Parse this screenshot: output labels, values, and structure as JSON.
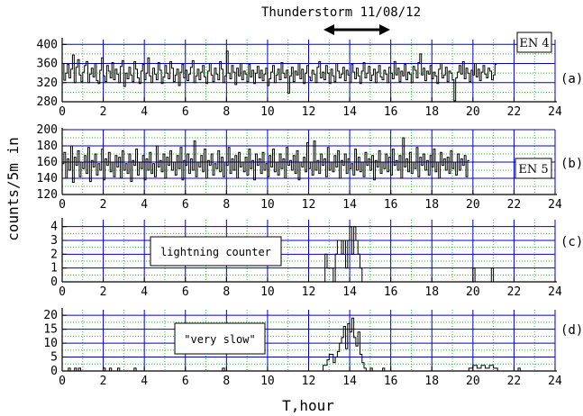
{
  "figure": {
    "title": "Thunderstorm 11/08/12",
    "ylabel": "counts/5m in",
    "xlabel": "T,hour",
    "colors": {
      "major_grid": "#0000cc",
      "minor_grid": "#2fbf2f",
      "series": "#000000",
      "arrow": "#000000"
    }
  },
  "chart_data": [
    {
      "type": "line",
      "panel_letter": "(a)",
      "box_label": "EN 4",
      "x_ticks": [
        "0",
        "2",
        "4",
        "6",
        "8",
        "10",
        "12",
        "14",
        "16",
        "18",
        "20",
        "22",
        "24"
      ],
      "y_ticks": [
        "280",
        "320",
        "360",
        "400"
      ],
      "xlim": [
        0,
        24
      ],
      "ylim": [
        280,
        410
      ],
      "grid": true,
      "series": [
        {
          "step_hours": 0.0833,
          "values": [
            360,
            325,
            340,
            358,
            330,
            348,
            378,
            320,
            352,
            368,
            336,
            322,
            342,
            356,
            364,
            320,
            338,
            350,
            332,
            360,
            324,
            318,
            346,
            372,
            334,
            322,
            356,
            344,
            330,
            362,
            326,
            348,
            338,
            320,
            354,
            366,
            312,
            340,
            328,
            352,
            336,
            322,
            364,
            348,
            330,
            318,
            344,
            358,
            326,
            340,
            372,
            334,
            320,
            350,
            338,
            326,
            362,
            346,
            318,
            332,
            356,
            340,
            328,
            364,
            350,
            322,
            336,
            348,
            314,
            342,
            358,
            330,
            346,
            324,
            338,
            352,
            366,
            320,
            334,
            348,
            326,
            342,
            356,
            332,
            318,
            344,
            360,
            336,
            322,
            350,
            338,
            326,
            364,
            348,
            320,
            334,
            386,
            340,
            328,
            356,
            342,
            316,
            350,
            334,
            360,
            326,
            344,
            338,
            322,
            358,
            332,
            346,
            318,
            340,
            354,
            330,
            346,
            324,
            338,
            350,
            314,
            328,
            342,
            356,
            320,
            336,
            348,
            326,
            362,
            340,
            330,
            346,
            298,
            334,
            352,
            322,
            344,
            336,
            360,
            328,
            348,
            318,
            340,
            356,
            332,
            324,
            346,
            338,
            320,
            352,
            364,
            330,
            342,
            326,
            356,
            340,
            318,
            348,
            334,
            322,
            360,
            344,
            330,
            338,
            352,
            324,
            346,
            336,
            320,
            358,
            342,
            328,
            350,
            334,
            318,
            344,
            362,
            330,
            340,
            354,
            324,
            336,
            348,
            320,
            342,
            356,
            332,
            326,
            346,
            338,
            320,
            352,
            340,
            328,
            364,
            336,
            350,
            322,
            344,
            334,
            358,
            326,
            342,
            338,
            320,
            354,
            346,
            330,
            362,
            380,
            336,
            350,
            324,
            344,
            338,
            356,
            328,
            342,
            334,
            318,
            348,
            360,
            330,
            336,
            352,
            322,
            344,
            340,
            326,
            282,
            330,
            342,
            356,
            338,
            364,
            328,
            350,
            340,
            322,
            346,
            336,
            360,
            332,
            348,
            324,
            342,
            356,
            338,
            330,
            350,
            344,
            326,
            336,
            358
          ]
        }
      ]
    },
    {
      "type": "line",
      "panel_letter": "(b)",
      "box_label": "EN 5",
      "x_ticks": [
        "0",
        "2",
        "4",
        "6",
        "8",
        "10",
        "12",
        "14",
        "16",
        "18",
        "20",
        "22",
        "24"
      ],
      "y_ticks": [
        "120",
        "140",
        "160",
        "180",
        "200"
      ],
      "xlim": [
        0,
        24
      ],
      "ylim": [
        120,
        200
      ],
      "grid": true,
      "series": [
        {
          "step_hours": 0.0833,
          "values": [
            158,
            172,
            140,
            164,
            150,
            180,
            135,
            166,
            156,
            174,
            142,
            160,
            152,
            168,
            146,
            178,
            136,
            162,
            154,
            170,
            144,
            158,
            150,
            176,
            138,
            164,
            156,
            172,
            148,
            160,
            142,
            168,
            154,
            166,
            140,
            174,
            150,
            158,
            146,
            170,
            136,
            162,
            156,
            176,
            144,
            160,
            152,
            168,
            138,
            164,
            150,
            172,
            146,
            158,
            142,
            180,
            154,
            162,
            148,
            170,
            140,
            166,
            156,
            174,
            150,
            160,
            144,
            168,
            152,
            178,
            138,
            162,
            156,
            170,
            146,
            164,
            150,
            186,
            142,
            160,
            154,
            168,
            148,
            176,
            140,
            162,
            156,
            170,
            144,
            158,
            152,
            174,
            148,
            166,
            142,
            160,
            156,
            178,
            146,
            164,
            150,
            168,
            140,
            172,
            154,
            160,
            148,
            166,
            144,
            176,
            152,
            162,
            138,
            170,
            156,
            164,
            146,
            172,
            150,
            158,
            142,
            168,
            154,
            176,
            148,
            160,
            144,
            170,
            152,
            164,
            140,
            178,
            156,
            162,
            150,
            168,
            146,
            174,
            138,
            160,
            154,
            166,
            148,
            184,
            152,
            160,
            144,
            186,
            150,
            162,
            146,
            170,
            156,
            164,
            142,
            178,
            150,
            160,
            148,
            168,
            154,
            174,
            140,
            162,
            156,
            170,
            146,
            164,
            152,
            158,
            144,
            176,
            150,
            166,
            148,
            160,
            142,
            172,
            156,
            164,
            150,
            168,
            138,
            162,
            154,
            174,
            146,
            160,
            152,
            170,
            148,
            166,
            144,
            176,
            156,
            162,
            150,
            168,
            140,
            190,
            154,
            164,
            148,
            172,
            146,
            160,
            152,
            178,
            142,
            166,
            156,
            170,
            150,
            162,
            144,
            168,
            154,
            176,
            148,
            160,
            140,
            172,
            156,
            164,
            150,
            166,
            146,
            174,
            152,
            160,
            144,
            170,
            150,
            164,
            156,
            168,
            142,
            162
          ]
        }
      ]
    },
    {
      "type": "line",
      "panel_letter": "(c)",
      "box_label": "lightning counter",
      "x_ticks": [
        "0",
        "2",
        "4",
        "6",
        "8",
        "10",
        "12",
        "14",
        "16",
        "18",
        "20",
        "22",
        "24"
      ],
      "y_ticks": [
        "0",
        "1",
        "2",
        "3",
        "4"
      ],
      "xlim": [
        0,
        24
      ],
      "ylim": [
        0,
        4.5
      ],
      "grid": true,
      "series": [
        {
          "x": [
            0,
            12.8,
            12.8,
            12.9,
            12.9,
            13.2,
            13.2,
            13.3,
            13.3,
            13.4,
            13.4,
            13.6,
            13.6,
            13.7,
            13.7,
            13.8,
            13.8,
            13.9,
            13.9,
            14.0,
            14.0,
            14.1,
            14.1,
            14.2,
            14.2,
            14.3,
            14.3,
            14.4,
            14.4,
            14.5,
            14.5,
            14.6,
            14.6,
            20.0,
            20.0,
            20.1,
            20.1,
            20.9,
            20.9,
            21.0,
            21.0,
            24
          ],
          "values": [
            0,
            0,
            2,
            2,
            1,
            1,
            0,
            0,
            2,
            2,
            3,
            3,
            2,
            2,
            3,
            3,
            1,
            1,
            3,
            3,
            4,
            4,
            2,
            2,
            4,
            4,
            3,
            3,
            2,
            2,
            1,
            1,
            0,
            0,
            1,
            1,
            0,
            0,
            1,
            1,
            0,
            0
          ]
        }
      ]
    },
    {
      "type": "line",
      "panel_letter": "(d)",
      "box_label": "\"very slow\"",
      "x_ticks": [
        "0",
        "2",
        "4",
        "6",
        "8",
        "10",
        "12",
        "14",
        "16",
        "18",
        "20",
        "22",
        "24"
      ],
      "y_ticks": [
        "0",
        "5",
        "10",
        "15",
        "20"
      ],
      "xlim": [
        0,
        24
      ],
      "ylim": [
        0,
        22
      ],
      "grid": true,
      "series": [
        {
          "x": [
            0,
            0.3,
            0.3,
            0.4,
            0.4,
            0.6,
            0.6,
            0.7,
            0.7,
            0.8,
            0.8,
            0.9,
            0.9,
            2.0,
            2.0,
            2.1,
            2.1,
            2.3,
            2.3,
            2.4,
            2.4,
            2.7,
            2.7,
            2.8,
            2.8,
            3.5,
            3.5,
            3.6,
            3.6,
            7.8,
            7.8,
            7.9,
            7.9,
            12.7,
            12.7,
            12.9,
            12.9,
            13.0,
            13.0,
            13.2,
            13.2,
            13.3,
            13.3,
            13.4,
            13.4,
            13.5,
            13.5,
            13.6,
            13.6,
            13.7,
            13.7,
            13.8,
            13.8,
            13.9,
            13.9,
            14.0,
            14.0,
            14.1,
            14.1,
            14.2,
            14.2,
            14.3,
            14.3,
            14.4,
            14.4,
            14.5,
            14.5,
            14.6,
            14.6,
            14.7,
            14.7,
            14.8,
            14.8,
            15.0,
            15.0,
            15.1,
            15.1,
            15.6,
            15.6,
            15.7,
            15.7,
            19.8,
            19.8,
            20.0,
            20.0,
            20.2,
            20.2,
            20.4,
            20.4,
            20.6,
            20.6,
            20.8,
            20.8,
            21.0,
            21.0,
            21.2,
            21.2,
            22.2,
            22.2,
            22.3,
            22.3,
            24
          ],
          "values": [
            0,
            0,
            1,
            1,
            0,
            0,
            1,
            1,
            0,
            0,
            1,
            1,
            0,
            0,
            1,
            1,
            0,
            0,
            1,
            1,
            0,
            0,
            1,
            1,
            0,
            0,
            1,
            1,
            0,
            0,
            1,
            1,
            0,
            0,
            2,
            2,
            4,
            4,
            6,
            6,
            3,
            3,
            5,
            5,
            7,
            7,
            10,
            10,
            12,
            12,
            16,
            16,
            8,
            8,
            17,
            17,
            14,
            14,
            19,
            19,
            12,
            12,
            9,
            9,
            14,
            14,
            6,
            6,
            3,
            3,
            1,
            1,
            0,
            0,
            1,
            1,
            0,
            0,
            1,
            1,
            0,
            0,
            1,
            1,
            2,
            2,
            1,
            1,
            2,
            2,
            1,
            1,
            2,
            2,
            1,
            1,
            0,
            0,
            1,
            1,
            0,
            0
          ]
        }
      ]
    }
  ]
}
